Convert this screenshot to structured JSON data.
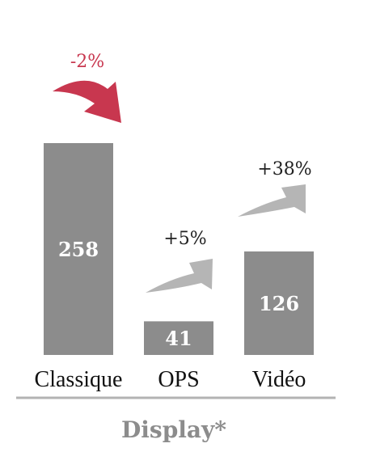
{
  "chart_data": {
    "type": "bar",
    "categories": [
      "Classique",
      "OPS",
      "Vidéo"
    ],
    "values": [
      258,
      41,
      126
    ],
    "changes": [
      "-2%",
      "+5%",
      "+38%"
    ],
    "change_direction": [
      "down",
      "up",
      "up"
    ],
    "title": "",
    "xlabel": "Display*",
    "ylabel": "",
    "ylim": [
      0,
      260
    ],
    "grid": false,
    "legend": "none"
  },
  "colors": {
    "bar": "#8c8c8c",
    "bar_label": "#ffffff",
    "category_label": "#111111",
    "down_arrow": "#c8374f",
    "down_text": "#c8374f",
    "up_arrow": "#b5b5b5",
    "up_text": "#222222",
    "baseline": "#b3b3b3",
    "footer": "#8c8c8c"
  }
}
